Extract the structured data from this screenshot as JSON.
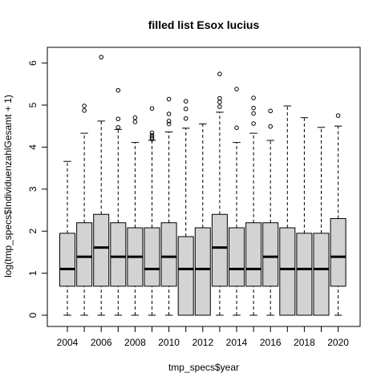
{
  "chart_data": {
    "type": "boxplot",
    "title": "filled list Esox lucius",
    "xlabel": "tmp_specs$year",
    "ylabel": "log(tmp_specs$IndividuenzahlGesamt + 1)",
    "ylim": [
      0,
      6.3
    ],
    "yticks": [
      0,
      1,
      2,
      3,
      4,
      5,
      6
    ],
    "x_tick_labels": [
      "2004",
      "2006",
      "2008",
      "2010",
      "2012",
      "2014",
      "2016",
      "2018",
      "2020"
    ],
    "box_fill": "#d3d3d3",
    "categories": [
      "2004",
      "2005",
      "2006",
      "2007",
      "2008",
      "2009",
      "2010",
      "2011",
      "2012",
      "2013",
      "2014",
      "2015",
      "2016",
      "2017",
      "2018",
      "2019",
      "2020"
    ],
    "boxes": [
      {
        "year": "2004",
        "min": 0,
        "q1": 0.69,
        "median": 1.1,
        "q3": 1.95,
        "max": 3.66,
        "outliers": []
      },
      {
        "year": "2005",
        "min": 0,
        "q1": 0.69,
        "median": 1.39,
        "q3": 2.2,
        "max": 4.33,
        "outliers": [
          4.87,
          4.98
        ]
      },
      {
        "year": "2006",
        "min": 0,
        "q1": 0.69,
        "median": 1.61,
        "q3": 2.4,
        "max": 4.62,
        "outliers": [
          6.14
        ]
      },
      {
        "year": "2007",
        "min": 0,
        "q1": 0.69,
        "median": 1.39,
        "q3": 2.2,
        "max": 4.42,
        "outliers": [
          4.47,
          4.67,
          5.35
        ]
      },
      {
        "year": "2008",
        "min": 0,
        "q1": 0.69,
        "median": 1.39,
        "q3": 2.08,
        "max": 4.11,
        "outliers": [
          4.6,
          4.7
        ]
      },
      {
        "year": "2009",
        "min": 0,
        "q1": 0.69,
        "median": 1.1,
        "q3": 2.08,
        "max": 4.16,
        "outliers": [
          4.19,
          4.23,
          4.28,
          4.34,
          4.92
        ]
      },
      {
        "year": "2010",
        "min": 0,
        "q1": 0.69,
        "median": 1.39,
        "q3": 2.2,
        "max": 4.36,
        "outliers": [
          4.55,
          4.62,
          4.79,
          5.14
        ]
      },
      {
        "year": "2011",
        "min": 0,
        "q1": 0,
        "median": 1.1,
        "q3": 1.87,
        "max": 4.45,
        "outliers": [
          4.68,
          4.91,
          5.09
        ]
      },
      {
        "year": "2012",
        "min": 0,
        "q1": 0,
        "median": 1.1,
        "q3": 2.08,
        "max": 4.55,
        "outliers": []
      },
      {
        "year": "2013",
        "min": 0,
        "q1": 0.69,
        "median": 1.61,
        "q3": 2.4,
        "max": 4.83,
        "outliers": [
          4.96,
          5.07,
          5.16,
          5.74
        ]
      },
      {
        "year": "2014",
        "min": 0,
        "q1": 0.69,
        "median": 1.1,
        "q3": 2.08,
        "max": 4.11,
        "outliers": [
          4.46,
          5.38
        ]
      },
      {
        "year": "2015",
        "min": 0,
        "q1": 0.69,
        "median": 1.1,
        "q3": 2.2,
        "max": 4.33,
        "outliers": [
          4.56,
          4.8,
          4.93,
          5.17
        ]
      },
      {
        "year": "2016",
        "min": 0,
        "q1": 0.69,
        "median": 1.39,
        "q3": 2.2,
        "max": 4.16,
        "outliers": [
          4.49,
          4.86
        ]
      },
      {
        "year": "2017",
        "min": 0,
        "q1": 0,
        "median": 1.1,
        "q3": 2.08,
        "max": 4.98,
        "outliers": []
      },
      {
        "year": "2018",
        "min": 0,
        "q1": 0,
        "median": 1.1,
        "q3": 1.95,
        "max": 4.7,
        "outliers": []
      },
      {
        "year": "2019",
        "min": 0,
        "q1": 0,
        "median": 1.1,
        "q3": 1.95,
        "max": 4.47,
        "outliers": []
      },
      {
        "year": "2020",
        "min": 0,
        "q1": 0.69,
        "median": 1.39,
        "q3": 2.3,
        "max": 4.5,
        "outliers": [
          4.75
        ]
      }
    ]
  }
}
